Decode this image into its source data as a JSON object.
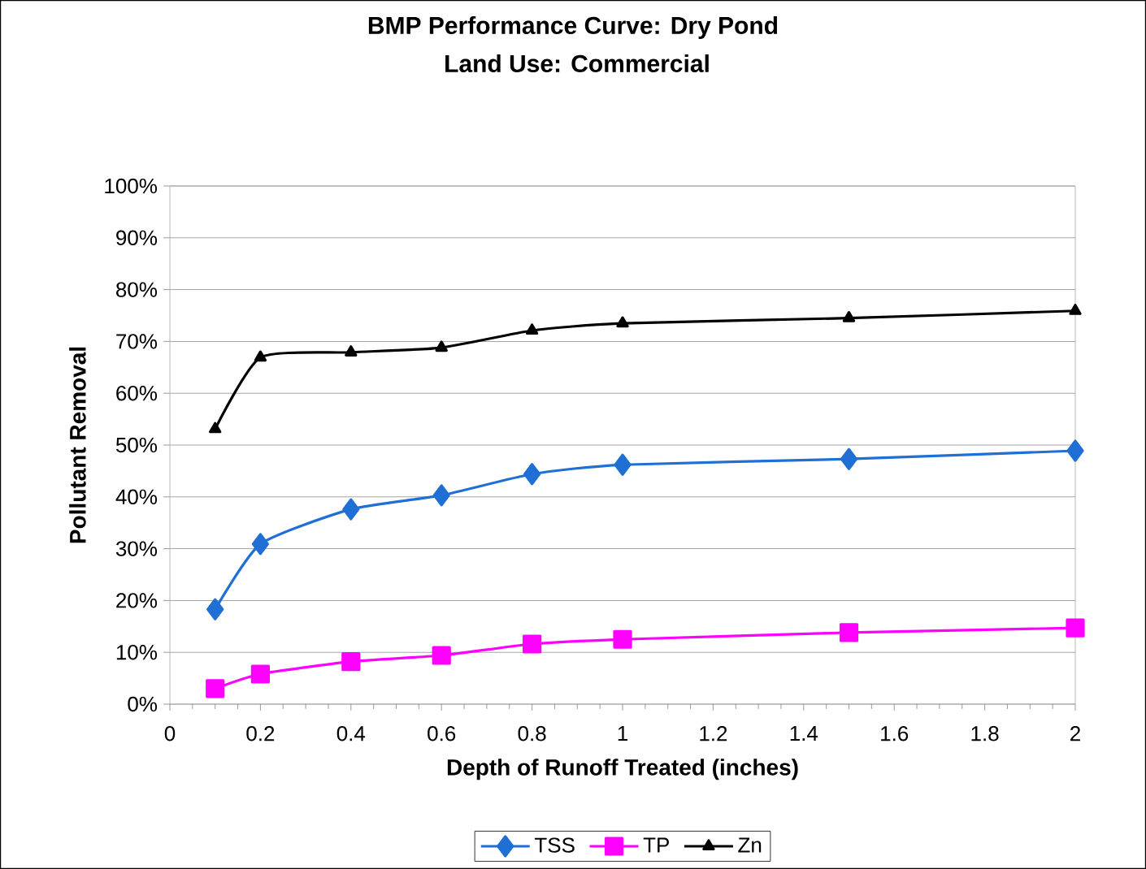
{
  "chart_data": {
    "type": "line",
    "title": "BMP Performance Curve: Dry Pond",
    "subtitle": "Land Use: Commercial",
    "xlabel": "Depth of Runoff Treated (inches)",
    "ylabel": "Pollutant Removal",
    "x": [
      0.1,
      0.2,
      0.4,
      0.6,
      0.8,
      1,
      1.5,
      2
    ],
    "series": [
      {
        "name": "TSS",
        "color": "#1f6fd4",
        "marker": "diamond",
        "values": [
          18.3,
          30.9,
          37.6,
          40.3,
          44.4,
          46.2,
          47.3,
          48.9
        ]
      },
      {
        "name": "TP",
        "color": "#ff00ff",
        "marker": "square",
        "values": [
          3,
          5.8,
          8.2,
          9.4,
          11.6,
          12.5,
          13.8,
          14.7
        ]
      },
      {
        "name": "Zn",
        "color": "#000000",
        "marker": "triangle",
        "values": [
          53.1,
          66.9,
          67.9,
          68.8,
          72.1,
          73.5,
          74.5,
          75.9
        ]
      }
    ],
    "xlim": [
      0,
      2
    ],
    "xticks": [
      0,
      0.2,
      0.4,
      0.6,
      0.8,
      1,
      1.2,
      1.4,
      1.6,
      1.8,
      2
    ],
    "ylim": [
      0,
      100
    ],
    "yticks": [
      {
        "value": 0,
        "label": "0%"
      },
      {
        "value": 10,
        "label": "10%"
      },
      {
        "value": 20,
        "label": "20%"
      },
      {
        "value": 30,
        "label": "30%"
      },
      {
        "value": 40,
        "label": "40%"
      },
      {
        "value": 50,
        "label": "50%"
      },
      {
        "value": 60,
        "label": "60%"
      },
      {
        "value": 70,
        "label": "70%"
      },
      {
        "value": 80,
        "label": "80%"
      },
      {
        "value": 90,
        "label": "90%"
      },
      {
        "value": 100,
        "label": "100%"
      }
    ],
    "grid": "y",
    "legend": "bottom",
    "line_style": "solid"
  }
}
